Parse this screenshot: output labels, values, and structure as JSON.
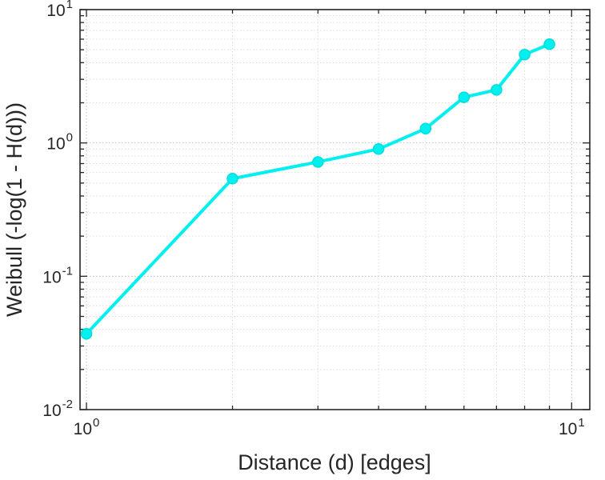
{
  "chart_data": {
    "type": "line",
    "title": "",
    "xlabel": "Distance (d) [edges]",
    "ylabel": "Weibull (-log(1 - H(d)))",
    "x_scale": "log",
    "y_scale": "log",
    "xlim": [
      0.97,
      10.9
    ],
    "ylim": [
      0.01,
      10
    ],
    "grid": true,
    "legend": false,
    "x": [
      1,
      2,
      3,
      4,
      5,
      6,
      7,
      8,
      9
    ],
    "y": [
      0.037,
      0.54,
      0.72,
      0.9,
      1.28,
      2.2,
      2.5,
      4.6,
      5.5
    ],
    "line_color": "#00f0f0",
    "marker": "circle",
    "marker_fill": "#00f0f0",
    "marker_edge": "#00dcdc",
    "x_ticks": [
      {
        "value": 1,
        "base": "10",
        "exp": "0"
      },
      {
        "value": 10,
        "base": "10",
        "exp": "1"
      }
    ],
    "y_ticks": [
      {
        "value": 0.01,
        "base": "10",
        "exp": "-2"
      },
      {
        "value": 0.1,
        "base": "10",
        "exp": "-1"
      },
      {
        "value": 1,
        "base": "10",
        "exp": "0"
      },
      {
        "value": 10,
        "base": "10",
        "exp": "1"
      }
    ],
    "colors": {
      "box": "#262626",
      "major_grid": "#bfbfbf",
      "minor_grid": "#dcdcdc",
      "text": "#262626"
    }
  }
}
